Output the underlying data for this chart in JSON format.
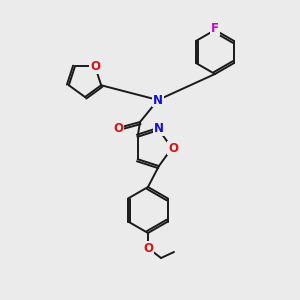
{
  "background_color": "#ebebeb",
  "bond_color": "#1a1a1a",
  "atom_colors": {
    "N": "#1010dd",
    "O": "#dd1010",
    "F": "#cc00cc",
    "C": "#1a1a1a"
  },
  "font_size_atoms": 8.5,
  "fig_size": [
    3.0,
    3.0
  ],
  "dpi": 100
}
